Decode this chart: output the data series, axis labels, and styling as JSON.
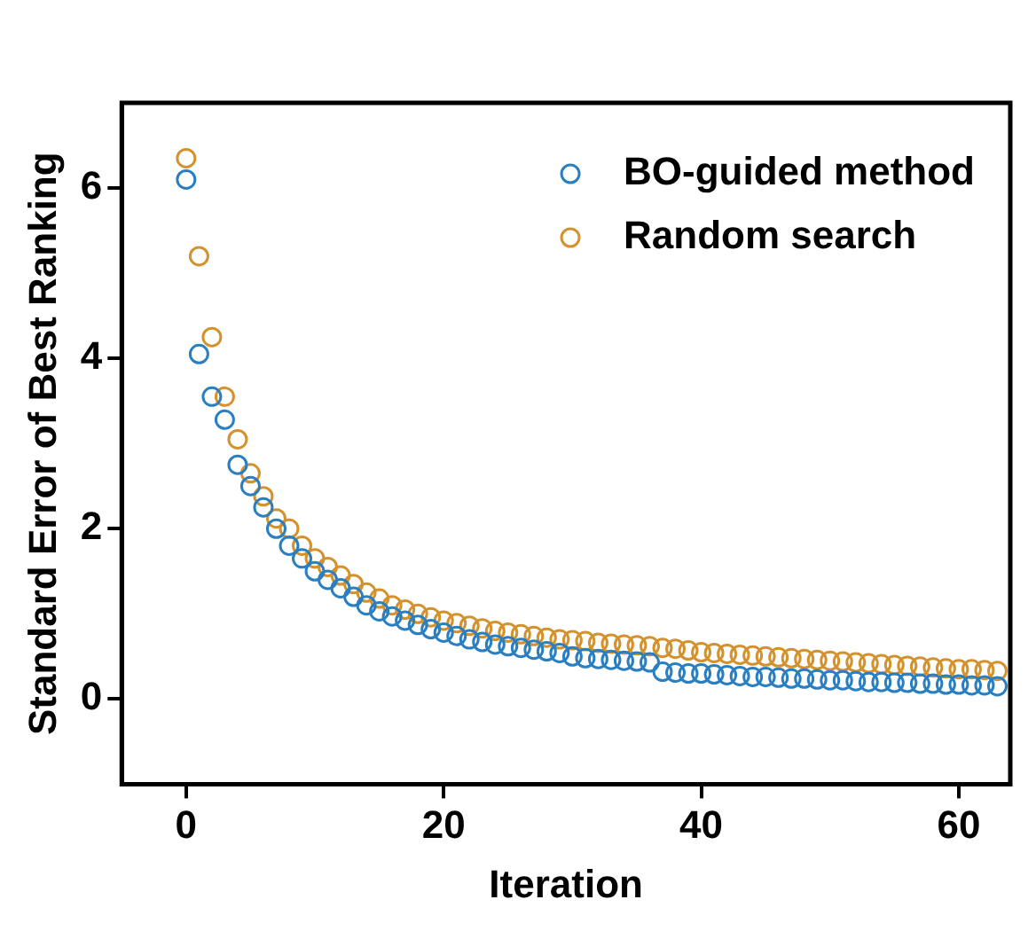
{
  "chart_data": {
    "type": "scatter",
    "xlabel": "Iteration",
    "ylabel": "Standard Error of Best Ranking",
    "x": [
      0,
      1,
      2,
      3,
      4,
      5,
      6,
      7,
      8,
      9,
      10,
      11,
      12,
      13,
      14,
      15,
      16,
      17,
      18,
      19,
      20,
      21,
      22,
      23,
      24,
      25,
      26,
      27,
      28,
      29,
      30,
      31,
      32,
      33,
      34,
      35,
      36,
      37,
      38,
      39,
      40,
      41,
      42,
      43,
      44,
      45,
      46,
      47,
      48,
      49,
      50,
      51,
      52,
      53,
      54,
      55,
      56,
      57,
      58,
      59,
      60,
      61,
      62,
      63
    ],
    "series": [
      {
        "name": "BO-guided method",
        "color": "#2a7fc1",
        "values": [
          6.1,
          4.05,
          3.55,
          3.28,
          2.75,
          2.5,
          2.25,
          2.0,
          1.8,
          1.65,
          1.5,
          1.4,
          1.3,
          1.2,
          1.1,
          1.03,
          0.97,
          0.92,
          0.87,
          0.82,
          0.78,
          0.74,
          0.7,
          0.67,
          0.64,
          0.62,
          0.6,
          0.58,
          0.56,
          0.54,
          0.5,
          0.48,
          0.47,
          0.46,
          0.45,
          0.44,
          0.43,
          0.32,
          0.31,
          0.3,
          0.3,
          0.29,
          0.28,
          0.27,
          0.26,
          0.26,
          0.25,
          0.24,
          0.24,
          0.23,
          0.22,
          0.22,
          0.21,
          0.2,
          0.2,
          0.19,
          0.19,
          0.18,
          0.18,
          0.17,
          0.17,
          0.16,
          0.16,
          0.15
        ]
      },
      {
        "name": "Random search",
        "color": "#d4922e",
        "values": [
          6.35,
          5.2,
          4.25,
          3.55,
          3.05,
          2.65,
          2.38,
          2.12,
          2.0,
          1.8,
          1.65,
          1.55,
          1.45,
          1.35,
          1.25,
          1.18,
          1.1,
          1.05,
          1.0,
          0.96,
          0.92,
          0.89,
          0.86,
          0.83,
          0.8,
          0.78,
          0.76,
          0.74,
          0.72,
          0.7,
          0.69,
          0.68,
          0.66,
          0.65,
          0.64,
          0.63,
          0.62,
          0.6,
          0.59,
          0.57,
          0.55,
          0.54,
          0.53,
          0.52,
          0.51,
          0.5,
          0.49,
          0.48,
          0.47,
          0.46,
          0.45,
          0.44,
          0.43,
          0.42,
          0.41,
          0.4,
          0.39,
          0.38,
          0.37,
          0.36,
          0.35,
          0.35,
          0.34,
          0.33
        ]
      }
    ],
    "xlim": [
      -5,
      64
    ],
    "xticks": [
      0,
      20,
      40,
      60
    ],
    "ylim": [
      -1,
      7
    ],
    "yticks": [
      0,
      2,
      4,
      6
    ],
    "grid": false,
    "legend": "top right",
    "marker": "circle"
  }
}
